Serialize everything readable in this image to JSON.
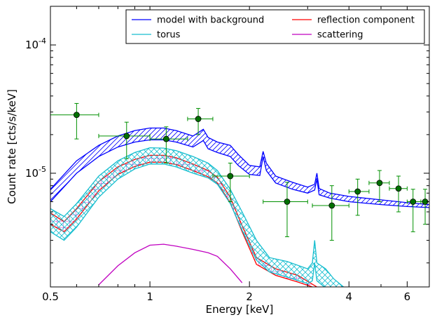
{
  "chart_data": {
    "type": "line",
    "xlabel": "Energy [keV]",
    "ylabel": "Count rate [cts/s/keV]",
    "xscale": "log",
    "yscale": "log",
    "xlim": [
      0.5,
      7.0
    ],
    "ylim": [
      1.3e-06,
      0.0002
    ],
    "x_ticks": [
      {
        "value": 0.5,
        "label": "0.5"
      },
      {
        "value": 1,
        "label": "1"
      },
      {
        "value": 2,
        "label": "2"
      },
      {
        "value": 4,
        "label": "4"
      },
      {
        "value": 6,
        "label": "6"
      }
    ],
    "y_ticks": [
      {
        "value": 1e-05,
        "mant": "10",
        "exp": "-5"
      },
      {
        "value": 0.0001,
        "mant": "10",
        "exp": "-4"
      }
    ],
    "legend": {
      "placement": "top-right",
      "entries": [
        {
          "label": "model with background",
          "color": "#0000ff"
        },
        {
          "label": "reflection component",
          "color": "#ff0000"
        },
        {
          "label": "torus",
          "color": "#17becf"
        },
        {
          "label": "scattering",
          "color": "#c000c0"
        }
      ]
    },
    "series": [
      {
        "name": "model with background",
        "color": "#0000ff",
        "hatch": "diagonal",
        "upper": [
          [
            0.5,
            7.5e-06
          ],
          [
            0.6,
            1.25e-05
          ],
          [
            0.7,
            1.65e-05
          ],
          [
            0.8,
            1.95e-05
          ],
          [
            0.9,
            2.15e-05
          ],
          [
            1.0,
            2.25e-05
          ],
          [
            1.1,
            2.25e-05
          ],
          [
            1.2,
            2.15e-05
          ],
          [
            1.35,
            1.95e-05
          ],
          [
            1.45,
            2.2e-05
          ],
          [
            1.5,
            1.9e-05
          ],
          [
            1.6,
            1.75e-05
          ],
          [
            1.75,
            1.65e-05
          ],
          [
            1.85,
            1.4e-05
          ],
          [
            2.0,
            1.15e-05
          ],
          [
            2.15,
            1.12e-05
          ],
          [
            2.2,
            1.48e-05
          ],
          [
            2.25,
            1.2e-05
          ],
          [
            2.4,
            9.5e-06
          ],
          [
            2.7,
            8.5e-06
          ],
          [
            3.0,
            7.8e-06
          ],
          [
            3.15,
            8.2e-06
          ],
          [
            3.2,
            1e-05
          ],
          [
            3.25,
            7.6e-06
          ],
          [
            3.5,
            7e-06
          ],
          [
            4.0,
            6.6e-06
          ],
          [
            5.0,
            6.2e-06
          ],
          [
            6.0,
            5.9e-06
          ],
          [
            7.0,
            5.7e-06
          ]
        ],
        "lower": [
          [
            0.5,
            6e-06
          ],
          [
            0.6,
            1e-05
          ],
          [
            0.7,
            1.35e-05
          ],
          [
            0.8,
            1.6e-05
          ],
          [
            0.9,
            1.75e-05
          ],
          [
            1.0,
            1.82e-05
          ],
          [
            1.1,
            1.82e-05
          ],
          [
            1.2,
            1.75e-05
          ],
          [
            1.35,
            1.6e-05
          ],
          [
            1.45,
            1.8e-05
          ],
          [
            1.5,
            1.55e-05
          ],
          [
            1.6,
            1.45e-05
          ],
          [
            1.75,
            1.35e-05
          ],
          [
            1.85,
            1.15e-05
          ],
          [
            2.0,
            9.8e-06
          ],
          [
            2.15,
            9.6e-06
          ],
          [
            2.2,
            1.35e-05
          ],
          [
            2.25,
            1.05e-05
          ],
          [
            2.4,
            8.4e-06
          ],
          [
            2.7,
            7.5e-06
          ],
          [
            3.0,
            7e-06
          ],
          [
            3.15,
            7.4e-06
          ],
          [
            3.2,
            9e-06
          ],
          [
            3.25,
            6.8e-06
          ],
          [
            3.5,
            6.4e-06
          ],
          [
            4.0,
            6e-06
          ],
          [
            5.0,
            5.7e-06
          ],
          [
            6.0,
            5.5e-06
          ],
          [
            7.0,
            5.4e-06
          ]
        ]
      },
      {
        "name": "torus",
        "color": "#17becf",
        "hatch": "cross-diagonal",
        "upper": [
          [
            0.5,
            5.3e-06
          ],
          [
            0.55,
            4.6e-06
          ],
          [
            0.6,
            5.8e-06
          ],
          [
            0.7,
            9.5e-06
          ],
          [
            0.8,
            1.25e-05
          ],
          [
            0.9,
            1.45e-05
          ],
          [
            1.0,
            1.58e-05
          ],
          [
            1.1,
            1.57e-05
          ],
          [
            1.2,
            1.5e-05
          ],
          [
            1.35,
            1.35e-05
          ],
          [
            1.5,
            1.2e-05
          ],
          [
            1.6,
            1.05e-05
          ],
          [
            1.75,
            7.5e-06
          ],
          [
            1.9,
            5e-06
          ],
          [
            2.1,
            3e-06
          ],
          [
            2.3,
            2.2e-06
          ],
          [
            2.6,
            2.05e-06
          ],
          [
            3.0,
            1.8e-06
          ],
          [
            3.1,
            2e-06
          ],
          [
            3.15,
            3e-06
          ],
          [
            3.2,
            2e-06
          ],
          [
            3.4,
            1.8e-06
          ],
          [
            3.6,
            1.5e-06
          ],
          [
            4.0,
            1.2e-06
          ]
        ],
        "lower": [
          [
            0.5,
            3.5e-06
          ],
          [
            0.55,
            3e-06
          ],
          [
            0.6,
            3.8e-06
          ],
          [
            0.7,
            6.5e-06
          ],
          [
            0.8,
            9e-06
          ],
          [
            0.9,
            1.08e-05
          ],
          [
            1.0,
            1.18e-05
          ],
          [
            1.1,
            1.18e-05
          ],
          [
            1.2,
            1.12e-05
          ],
          [
            1.35,
            1e-05
          ],
          [
            1.5,
            9.2e-06
          ],
          [
            1.6,
            8.2e-06
          ],
          [
            1.75,
            5.8e-06
          ],
          [
            1.9,
            3.6e-06
          ],
          [
            2.1,
            2.1e-06
          ],
          [
            2.3,
            1.7e-06
          ],
          [
            2.6,
            1.55e-06
          ],
          [
            3.0,
            1.38e-06
          ],
          [
            3.1,
            1.45e-06
          ],
          [
            3.15,
            2e-06
          ],
          [
            3.2,
            1.45e-06
          ],
          [
            3.5,
            1.2e-06
          ]
        ]
      },
      {
        "name": "reflection component",
        "color": "#ff0000",
        "hatch": "grid",
        "upper": [
          [
            0.5,
            4.9e-06
          ],
          [
            0.55,
            4.2e-06
          ],
          [
            0.6,
            5.3e-06
          ],
          [
            0.7,
            8.6e-06
          ],
          [
            0.8,
            1.12e-05
          ],
          [
            0.9,
            1.28e-05
          ],
          [
            1.0,
            1.38e-05
          ],
          [
            1.1,
            1.38e-05
          ],
          [
            1.2,
            1.32e-05
          ],
          [
            1.35,
            1.18e-05
          ],
          [
            1.5,
            1.05e-05
          ],
          [
            1.6,
            9.3e-06
          ],
          [
            1.75,
            6.5e-06
          ],
          [
            1.9,
            3.9e-06
          ],
          [
            2.1,
            2.2e-06
          ],
          [
            2.4,
            1.8e-06
          ],
          [
            2.8,
            1.6e-06
          ],
          [
            3.2,
            1.3e-06
          ]
        ],
        "lower": [
          [
            0.5,
            4e-06
          ],
          [
            0.55,
            3.5e-06
          ],
          [
            0.6,
            4.4e-06
          ],
          [
            0.7,
            7.3e-06
          ],
          [
            0.8,
            9.8e-06
          ],
          [
            0.9,
            1.13e-05
          ],
          [
            1.0,
            1.22e-05
          ],
          [
            1.1,
            1.22e-05
          ],
          [
            1.2,
            1.17e-05
          ],
          [
            1.35,
            1.05e-05
          ],
          [
            1.5,
            9.4e-06
          ],
          [
            1.6,
            8.4e-06
          ],
          [
            1.75,
            5.9e-06
          ],
          [
            1.9,
            3.5e-06
          ],
          [
            2.1,
            1.95e-06
          ],
          [
            2.4,
            1.6e-06
          ],
          [
            2.8,
            1.42e-06
          ],
          [
            3.1,
            1.3e-06
          ]
        ]
      },
      {
        "name": "scattering",
        "color": "#c000c0",
        "hatch": "none",
        "upper": [
          [
            0.7,
            1.35e-06
          ],
          [
            0.8,
            1.9e-06
          ],
          [
            0.9,
            2.4e-06
          ],
          [
            1.0,
            2.75e-06
          ],
          [
            1.1,
            2.8e-06
          ],
          [
            1.2,
            2.7e-06
          ],
          [
            1.35,
            2.55e-06
          ],
          [
            1.5,
            2.4e-06
          ],
          [
            1.6,
            2.25e-06
          ],
          [
            1.75,
            1.8e-06
          ],
          [
            1.9,
            1.4e-06
          ]
        ],
        "lower": []
      }
    ],
    "points": [
      {
        "x": 0.6,
        "y": 2.85e-05,
        "xlo": 0.5,
        "xhi": 0.7,
        "ylo": 1.85e-05,
        "yhi": 3.5e-05
      },
      {
        "x": 0.85,
        "y": 1.95e-05,
        "xlo": 0.7,
        "xhi": 1.0,
        "ylo": 1.3e-05,
        "yhi": 2.5e-05
      },
      {
        "x": 1.12,
        "y": 1.85e-05,
        "xlo": 1.0,
        "xhi": 1.3,
        "ylo": 1.2e-05,
        "yhi": 2.3e-05
      },
      {
        "x": 1.4,
        "y": 2.65e-05,
        "xlo": 1.3,
        "xhi": 1.55,
        "ylo": 2e-05,
        "yhi": 3.2e-05
      },
      {
        "x": 1.75,
        "y": 9.5e-06,
        "xlo": 1.55,
        "xhi": 2.0,
        "ylo": 6e-06,
        "yhi": 1.2e-05
      },
      {
        "x": 2.6,
        "y": 6e-06,
        "xlo": 2.2,
        "xhi": 3.0,
        "ylo": 3.2e-06,
        "yhi": 8.5e-06
      },
      {
        "x": 3.55,
        "y": 5.6e-06,
        "xlo": 3.1,
        "xhi": 4.0,
        "ylo": 3e-06,
        "yhi": 8e-06
      },
      {
        "x": 4.25,
        "y": 7.2e-06,
        "xlo": 4.0,
        "xhi": 4.6,
        "ylo": 4.7e-06,
        "yhi": 9e-06
      },
      {
        "x": 4.95,
        "y": 8.4e-06,
        "xlo": 4.6,
        "xhi": 5.3,
        "ylo": 6e-06,
        "yhi": 1.05e-05
      },
      {
        "x": 5.65,
        "y": 7.6e-06,
        "xlo": 5.3,
        "xhi": 6.0,
        "ylo": 5e-06,
        "yhi": 9.5e-06
      },
      {
        "x": 6.25,
        "y": 6e-06,
        "xlo": 6.0,
        "xhi": 6.6,
        "ylo": 3.5e-06,
        "yhi": 7.5e-06
      },
      {
        "x": 6.8,
        "y": 6e-06,
        "xlo": 6.6,
        "xhi": 7.0,
        "ylo": 4e-06,
        "yhi": 7.5e-06
      }
    ]
  },
  "colors": {
    "points": "#007000",
    "errorbars": "#009000"
  }
}
